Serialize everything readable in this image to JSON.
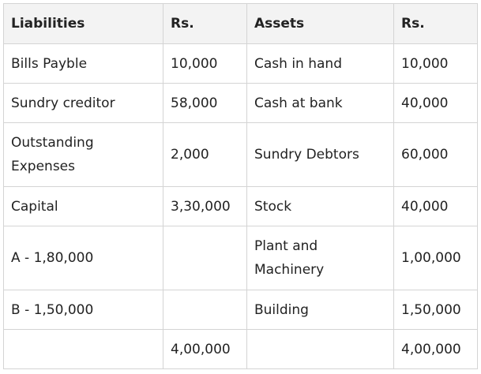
{
  "table": {
    "header": [
      "Liabilities",
      "Rs.",
      "Assets",
      "Rs."
    ],
    "rows": [
      [
        "Bills Payble",
        "10,000",
        "Cash in hand",
        "10,000"
      ],
      [
        "Sundry creditor",
        "58,000",
        "Cash at bank",
        "40,000"
      ],
      [
        "Outstanding Expenses",
        "2,000",
        "Sundry Debtors",
        "60,000"
      ],
      [
        "Capital",
        "3,30,000",
        "Stock",
        "40,000"
      ],
      [
        "A - 1,80,000",
        null,
        "Plant and Machinery",
        "1,00,000"
      ],
      [
        "B - 1,50,000",
        null,
        "Building",
        "1,50,000"
      ],
      [
        null,
        "4,00,000",
        null,
        "4,00,000"
      ]
    ]
  }
}
